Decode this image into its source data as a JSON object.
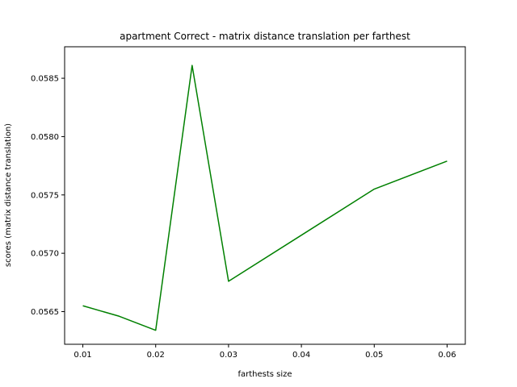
{
  "chart_data": {
    "type": "line",
    "title": "apartment Correct - matrix distance translation per farthest",
    "xlabel": "farthests size",
    "ylabel": "scores (matrix distance translation)",
    "xlim": [
      0.0075,
      0.0625
    ],
    "ylim": [
      0.05622,
      0.05877
    ],
    "x_ticks": [
      0.01,
      0.02,
      0.03,
      0.04,
      0.05,
      0.06
    ],
    "x_tick_labels": [
      "0.01",
      "0.02",
      "0.03",
      "0.04",
      "0.05",
      "0.06"
    ],
    "y_ticks": [
      0.0565,
      0.057,
      0.0575,
      0.058,
      0.0585
    ],
    "y_tick_labels": [
      "0.0565",
      "0.0570",
      "0.0575",
      "0.0580",
      "0.0585"
    ],
    "grid": false,
    "series": [
      {
        "color": "#008000",
        "x": [
          0.01,
          0.015,
          0.02,
          0.025,
          0.03,
          0.05,
          0.06
        ],
        "y": [
          0.05655,
          0.05646,
          0.05634,
          0.05861,
          0.05676,
          0.05755,
          0.05779
        ]
      }
    ]
  }
}
